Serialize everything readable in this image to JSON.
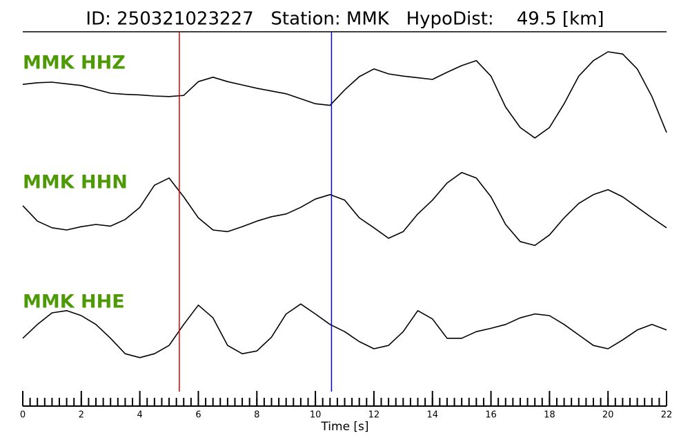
{
  "chart_data": {
    "type": "line",
    "title": "ID: 250321023227   Station: MMK   HypoDist:    49.5 [km]",
    "xlabel": "Time [s]",
    "xlim": [
      0,
      22
    ],
    "xticks": [
      0,
      2,
      4,
      6,
      8,
      10,
      12,
      14,
      16,
      18,
      20,
      22
    ],
    "xminorticks": [
      0,
      0.25,
      0.5,
      0.75,
      1,
      1.25,
      1.5,
      1.75,
      2,
      2.25,
      2.5,
      2.75,
      3,
      3.25,
      3.5,
      3.75,
      4,
      4.25,
      4.5,
      4.75,
      5,
      5.25,
      5.5,
      5.75,
      6,
      6.25,
      6.5,
      6.75,
      7,
      7.25,
      7.5,
      7.75,
      8,
      8.25,
      8.5,
      8.75,
      9,
      9.25,
      9.5,
      9.75,
      10,
      10.25,
      10.5,
      10.75,
      11,
      11.25,
      11.5,
      11.75,
      12,
      12.25,
      12.5,
      12.75,
      13,
      13.25,
      13.5,
      13.75,
      14,
      14.25,
      14.5,
      14.75,
      15,
      15.25,
      15.5,
      15.75,
      16,
      16.25,
      16.5,
      16.75,
      17,
      17.25,
      17.5,
      17.75,
      18,
      18.25,
      18.5,
      18.75,
      19,
      19.25,
      19.5,
      19.75,
      20,
      20.25,
      20.5,
      20.75,
      21,
      21.25,
      21.5,
      21.75,
      22
    ],
    "ylim": [
      -1,
      1
    ],
    "label_color": "#4e9a06",
    "x": [
      0,
      0.5,
      1,
      1.5,
      2,
      2.5,
      3,
      3.5,
      4,
      4.5,
      5,
      5.5,
      6,
      6.5,
      7,
      7.5,
      8,
      8.5,
      9,
      9.5,
      10,
      10.5,
      11,
      11.5,
      12,
      12.5,
      13,
      13.5,
      14,
      14.5,
      15,
      15.5,
      16,
      16.5,
      17,
      17.5,
      18,
      18.5,
      19,
      19.5,
      20,
      20.5,
      21,
      21.5,
      22
    ],
    "series": [
      {
        "name": "MMK HHZ",
        "color": "#000000",
        "values": [
          0.16,
          0.19,
          0.2,
          0.17,
          0.14,
          0.07,
          0,
          -0.02,
          -0.03,
          -0.05,
          -0.06,
          -0.04,
          0.21,
          0.29,
          0.21,
          0.15,
          0.09,
          0.04,
          -0.01,
          -0.1,
          -0.19,
          -0.22,
          0.06,
          0.3,
          0.44,
          0.35,
          0.31,
          0.28,
          0.25,
          0.38,
          0.5,
          0.59,
          0.31,
          -0.25,
          -0.62,
          -0.81,
          -0.62,
          -0.19,
          0.31,
          0.59,
          0.75,
          0.71,
          0.44,
          -0.06,
          -0.71
        ]
      },
      {
        "name": "MMK HHN",
        "color": "#000000",
        "values": [
          0.09,
          -0.19,
          -0.31,
          -0.35,
          -0.29,
          -0.25,
          -0.28,
          -0.16,
          0.06,
          0.46,
          0.59,
          0.25,
          -0.13,
          -0.35,
          -0.38,
          -0.29,
          -0.19,
          -0.11,
          -0.06,
          0.06,
          0.21,
          0.29,
          0.19,
          -0.13,
          -0.31,
          -0.5,
          -0.38,
          -0.06,
          0.19,
          0.5,
          0.69,
          0.59,
          0.25,
          -0.25,
          -0.56,
          -0.63,
          -0.44,
          -0.13,
          0.13,
          0.29,
          0.38,
          0.25,
          0.06,
          -0.13,
          -0.31
        ]
      },
      {
        "name": "MMK HHE",
        "color": "#000000",
        "values": [
          -0.06,
          0.19,
          0.4,
          0.44,
          0.35,
          0.19,
          -0.06,
          -0.34,
          -0.41,
          -0.34,
          -0.19,
          0.19,
          0.54,
          0.31,
          -0.19,
          -0.34,
          -0.29,
          -0.04,
          0.38,
          0.56,
          0.38,
          0.19,
          0.06,
          -0.12,
          -0.25,
          -0.19,
          0.06,
          0.44,
          0.29,
          -0.06,
          -0.06,
          0.06,
          0.12,
          0.19,
          0.31,
          0.38,
          0.35,
          0.19,
          0,
          -0.19,
          -0.25,
          -0.09,
          0.09,
          0.19,
          0.09
        ]
      }
    ],
    "vlines": [
      {
        "x": 5.35,
        "color": "#e00000"
      },
      {
        "x": 10.55,
        "color": "#0000e0"
      }
    ]
  }
}
